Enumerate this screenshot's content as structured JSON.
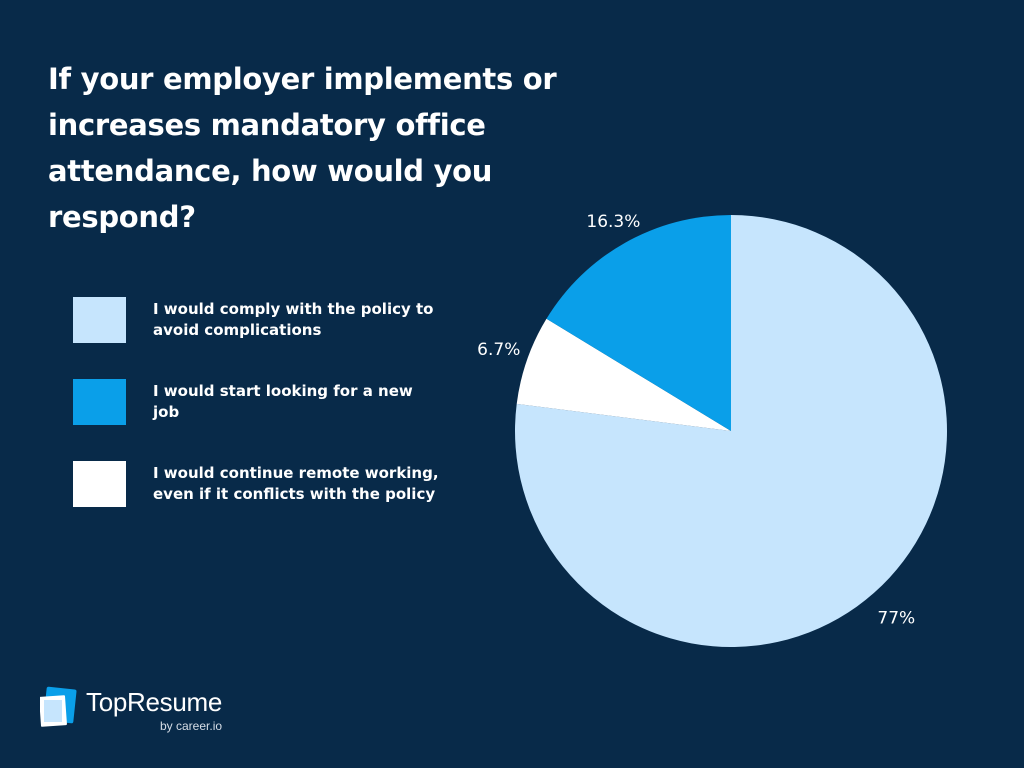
{
  "chart_data": {
    "type": "pie",
    "title": " If your employer implements or\nincreases mandatory office\nattendance, how would you respond?",
    "slices": [
      {
        "label": "I would comply with the policy to\navoid complications",
        "value": 77,
        "display": "77%",
        "color": "#c6e5fd"
      },
      {
        "label": "I would continue remote working,\neven if it conflicts with the policy",
        "value": 6.7,
        "display": "6.7%",
        "color": "#ffffff"
      },
      {
        "label": "I would start looking for a new\njob",
        "value": 16.3,
        "display": "16.3%",
        "color": "#0a9fe9"
      }
    ],
    "legend_order": [
      0,
      2,
      1
    ],
    "legend_position": "left"
  },
  "branding": {
    "logo_name": "TopResume",
    "logo_sub": "by career.io"
  },
  "colors": {
    "background": "#082a49",
    "text": "#ffffff"
  }
}
